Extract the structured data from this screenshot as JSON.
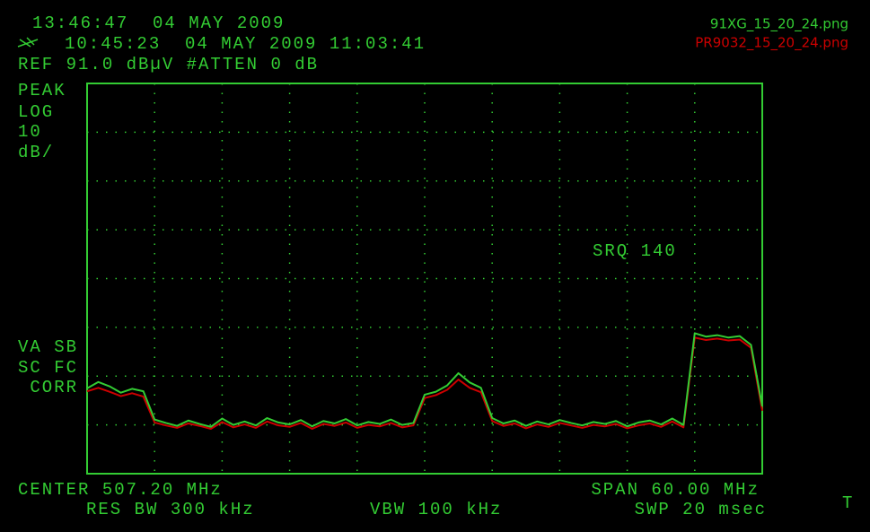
{
  "chart_data": {
    "type": "line",
    "header_top": "13:46:47  04 MAY 2009",
    "header_second": "10:45:23  04 MAY 2009 11:03:41",
    "reference": "REF 91.0 dBµV #ATTEN 0 dB",
    "scale_labels": [
      "PEAK",
      "LOG",
      "10",
      "dB/"
    ],
    "status_labels": [
      "VA SB",
      "SC FC",
      " CORR"
    ],
    "srq": "SRQ 140",
    "center": "CENTER 507.20 MHz",
    "span": "SPAN 60.00 MHz",
    "res_bw": "RES BW 300 kHz",
    "vbw": "VBW 100 kHz",
    "sweep": "SWP 20 msec",
    "corner_mark": "T",
    "xlim": [
      477.2,
      537.2
    ],
    "ylim": [
      11,
      91
    ],
    "xticks": [
      477.2,
      483.2,
      489.2,
      495.2,
      501.2,
      507.2,
      513.2,
      519.2,
      525.2,
      531.2,
      537.2
    ],
    "yticks": [
      11,
      21,
      31,
      41,
      51,
      61,
      71,
      81,
      91
    ],
    "grid": true,
    "x": [
      477.2,
      478.2,
      479.2,
      480.2,
      481.2,
      482.2,
      483.2,
      484.2,
      485.2,
      486.2,
      487.2,
      488.2,
      489.2,
      490.2,
      491.2,
      492.2,
      493.2,
      494.2,
      495.2,
      496.2,
      497.2,
      498.2,
      499.2,
      500.2,
      501.2,
      502.2,
      503.2,
      504.2,
      505.2,
      506.2,
      507.2,
      508.2,
      509.2,
      510.2,
      511.2,
      512.2,
      513.2,
      514.2,
      515.2,
      516.2,
      517.2,
      518.2,
      519.2,
      520.2,
      521.2,
      522.2,
      523.2,
      524.2,
      525.2,
      526.2,
      527.2,
      528.2,
      529.2,
      530.2,
      531.2,
      532.2,
      533.2,
      534.2,
      535.2,
      536.2,
      537.2
    ],
    "series": [
      {
        "name": "PR9032_15_20_24.png",
        "color": "#cc0000",
        "values": [
          27.9,
          28.6,
          27.8,
          26.9,
          27.5,
          26.8,
          21.5,
          20.9,
          20.4,
          21.3,
          20.8,
          20.2,
          21.6,
          20.5,
          21.1,
          20.4,
          21.7,
          20.9,
          20.6,
          21.4,
          20.2,
          21.2,
          20.8,
          21.5,
          20.4,
          21.0,
          20.7,
          21.4,
          20.5,
          20.9,
          26.5,
          27.1,
          28.2,
          30.3,
          28.6,
          27.7,
          21.8,
          20.8,
          21.3,
          20.3,
          21.1,
          20.6,
          21.4,
          20.9,
          20.4,
          21.0,
          20.7,
          21.2,
          20.3,
          20.9,
          21.3,
          20.6,
          21.7,
          20.5,
          38.9,
          38.4,
          38.7,
          38.3,
          38.5,
          36.8,
          23.9
        ]
      },
      {
        "name": "91XG_15_20_24.png",
        "color": "#33cc33",
        "values": [
          28.5,
          29.8,
          28.9,
          27.6,
          28.4,
          27.9,
          22.1,
          21.4,
          20.8,
          21.9,
          21.2,
          20.6,
          22.3,
          21.0,
          21.7,
          20.9,
          22.4,
          21.5,
          21.1,
          22.0,
          20.7,
          21.8,
          21.3,
          22.2,
          20.9,
          21.6,
          21.2,
          22.1,
          21.0,
          21.4,
          27.2,
          27.8,
          29.1,
          31.6,
          29.7,
          28.6,
          22.4,
          21.3,
          21.9,
          20.8,
          21.7,
          21.1,
          22.0,
          21.4,
          20.9,
          21.6,
          21.2,
          21.8,
          20.7,
          21.5,
          21.9,
          21.1,
          22.3,
          21.0,
          39.8,
          39.1,
          39.4,
          38.9,
          39.2,
          37.4,
          24.8
        ]
      }
    ]
  }
}
